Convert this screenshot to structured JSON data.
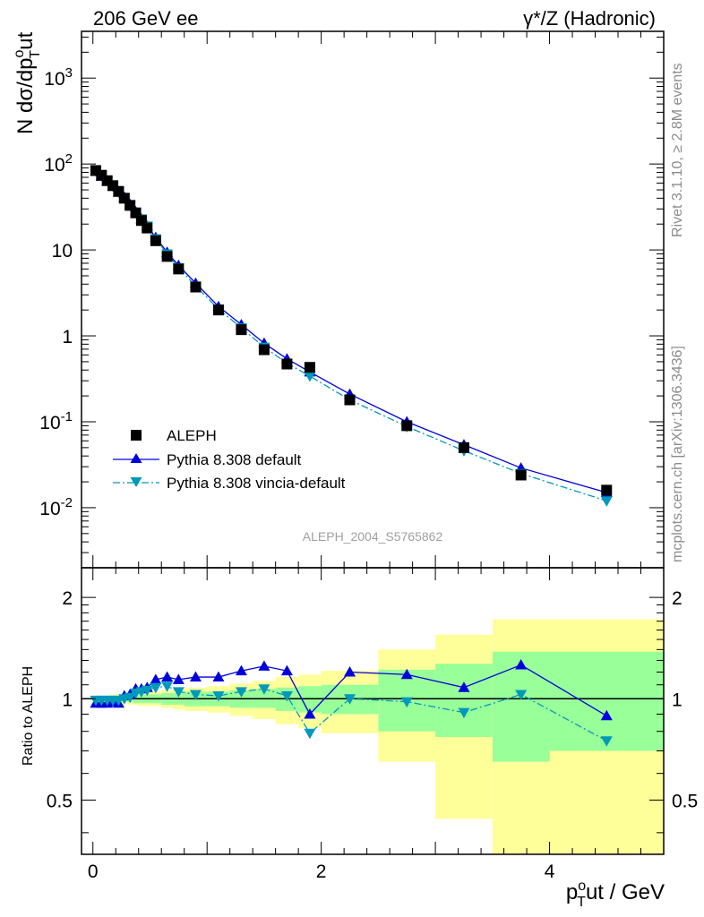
{
  "header": {
    "left": "206 GeV ee",
    "right": "γ*/Z (Hadronic)"
  },
  "side_labels": {
    "rivet": "Rivet 3.1.10, ≥ 2.8M events",
    "site": "mcplots.cern.ch [arXiv:1306.3436]"
  },
  "analysis_label": "ALEPH_2004_S5765862",
  "axes": {
    "y_main_label": "N dσ/dpTout",
    "y_ratio_label": "Ratio to ALEPH",
    "x_label": "pTout / GeV",
    "y_main_ticks": [
      "10^-2",
      "10^-1",
      "1",
      "10",
      "10^2",
      "10^3"
    ],
    "y_ratio_ticks": [
      "0.5",
      "1",
      "2"
    ],
    "x_ticks": [
      "0",
      "2",
      "4"
    ]
  },
  "legend": [
    {
      "label": "ALEPH",
      "marker": "square",
      "color": "#000000"
    },
    {
      "label": "Pythia 8.308 default",
      "marker": "triangle-up",
      "color": "#0000dd"
    },
    {
      "label": "Pythia 8.308 vincia-default",
      "marker": "triangle-down",
      "color": "#0099bb"
    }
  ],
  "chart_data": {
    "type": "line",
    "x_range": [
      -0.1,
      5.0
    ],
    "main": {
      "yscale": "log",
      "ylim": [
        0.002,
        3500
      ],
      "series": [
        {
          "name": "ALEPH",
          "color": "#000000",
          "marker": "square",
          "x": [
            0.025,
            0.075,
            0.125,
            0.175,
            0.225,
            0.275,
            0.325,
            0.375,
            0.425,
            0.475,
            0.55,
            0.65,
            0.75,
            0.9,
            1.1,
            1.3,
            1.5,
            1.7,
            1.9,
            2.25,
            2.75,
            3.25,
            3.75,
            4.5
          ],
          "y": [
            84,
            74,
            64,
            56,
            48,
            40,
            33,
            27,
            22,
            18,
            12.8,
            8.4,
            6.0,
            3.7,
            2.0,
            1.18,
            0.69,
            0.47,
            0.43,
            0.18,
            0.09,
            0.05,
            0.024,
            0.016
          ]
        },
        {
          "name": "Pythia 8.308 default",
          "color": "#0000dd",
          "marker": "triangle-up",
          "x": [
            0.025,
            0.075,
            0.125,
            0.175,
            0.225,
            0.275,
            0.325,
            0.375,
            0.425,
            0.475,
            0.55,
            0.65,
            0.75,
            0.9,
            1.1,
            1.3,
            1.5,
            1.7,
            1.9,
            2.25,
            2.75,
            3.25,
            3.75,
            4.5
          ],
          "y": [
            82,
            72,
            63,
            55,
            47,
            41,
            34,
            28,
            23,
            19,
            14,
            9.4,
            6.6,
            4.1,
            2.2,
            1.35,
            0.82,
            0.54,
            0.38,
            0.21,
            0.1,
            0.054,
            0.029,
            0.015
          ]
        },
        {
          "name": "Pythia 8.308 vincia-default",
          "color": "#0099bb",
          "marker": "triangle-down",
          "x": [
            0.025,
            0.075,
            0.125,
            0.175,
            0.225,
            0.275,
            0.325,
            0.375,
            0.425,
            0.475,
            0.55,
            0.65,
            0.75,
            0.9,
            1.1,
            1.3,
            1.5,
            1.7,
            1.9,
            2.25,
            2.75,
            3.25,
            3.75,
            4.5
          ],
          "y": [
            83,
            73,
            64,
            55,
            47,
            40,
            33,
            27,
            23,
            19,
            13.5,
            9.0,
            6.2,
            3.8,
            2.05,
            1.24,
            0.74,
            0.48,
            0.34,
            0.18,
            0.088,
            0.046,
            0.025,
            0.012
          ]
        }
      ]
    },
    "ratio": {
      "yscale": "log",
      "ylim": [
        0.345,
        2.45
      ],
      "reference_line": 1,
      "bands": {
        "x_edges": [
          0.0,
          0.05,
          0.1,
          0.15,
          0.2,
          0.25,
          0.3,
          0.35,
          0.4,
          0.45,
          0.5,
          0.6,
          0.7,
          0.8,
          1.0,
          1.2,
          1.4,
          1.6,
          1.8,
          2.0,
          2.5,
          3.0,
          3.5,
          4.0,
          5.0
        ],
        "green_low": [
          0.99,
          0.99,
          0.99,
          0.98,
          0.98,
          0.98,
          0.98,
          0.97,
          0.97,
          0.97,
          0.97,
          0.96,
          0.96,
          0.95,
          0.95,
          0.94,
          0.94,
          0.92,
          0.91,
          0.9,
          0.8,
          0.77,
          0.65,
          0.7,
          0.7
        ],
        "green_high": [
          1.01,
          1.01,
          1.01,
          1.02,
          1.02,
          1.02,
          1.02,
          1.03,
          1.03,
          1.03,
          1.03,
          1.04,
          1.04,
          1.05,
          1.05,
          1.06,
          1.07,
          1.08,
          1.09,
          1.1,
          1.22,
          1.27,
          1.38,
          1.38,
          1.38
        ],
        "yellow_low": [
          0.98,
          0.98,
          0.98,
          0.97,
          0.97,
          0.97,
          0.96,
          0.96,
          0.95,
          0.95,
          0.95,
          0.94,
          0.93,
          0.92,
          0.91,
          0.89,
          0.87,
          0.84,
          0.82,
          0.79,
          0.65,
          0.44,
          0.32,
          0.32,
          0.32
        ],
        "yellow_high": [
          1.02,
          1.02,
          1.02,
          1.03,
          1.03,
          1.03,
          1.04,
          1.04,
          1.05,
          1.05,
          1.05,
          1.06,
          1.07,
          1.08,
          1.09,
          1.11,
          1.13,
          1.16,
          1.18,
          1.21,
          1.4,
          1.55,
          1.72,
          1.72,
          1.72
        ]
      },
      "series": [
        {
          "name": "Pythia 8.308 default",
          "color": "#0000dd",
          "marker": "triangle-up",
          "x": [
            0.025,
            0.075,
            0.125,
            0.175,
            0.225,
            0.275,
            0.325,
            0.375,
            0.425,
            0.475,
            0.55,
            0.65,
            0.75,
            0.9,
            1.1,
            1.3,
            1.5,
            1.7,
            1.9,
            2.25,
            2.75,
            3.25,
            3.75,
            4.5
          ],
          "y": [
            0.97,
            0.97,
            0.97,
            0.98,
            0.97,
            1.02,
            1.03,
            1.07,
            1.07,
            1.08,
            1.14,
            1.16,
            1.14,
            1.16,
            1.16,
            1.21,
            1.25,
            1.21,
            0.9,
            1.2,
            1.18,
            1.08,
            1.26,
            0.89
          ]
        },
        {
          "name": "Pythia 8.308 vincia-default",
          "color": "#0099bb",
          "marker": "triangle-down",
          "x": [
            0.025,
            0.075,
            0.125,
            0.175,
            0.225,
            0.275,
            0.325,
            0.375,
            0.425,
            0.475,
            0.55,
            0.65,
            0.75,
            0.9,
            1.1,
            1.3,
            1.5,
            1.7,
            1.9,
            2.25,
            2.75,
            3.25,
            3.75,
            4.5
          ],
          "y": [
            0.99,
            0.99,
            0.99,
            0.99,
            0.99,
            1.0,
            1.01,
            1.04,
            1.05,
            1.06,
            1.08,
            1.09,
            1.05,
            1.03,
            1.02,
            1.05,
            1.07,
            1.02,
            0.79,
            1.0,
            0.98,
            0.91,
            1.03,
            0.75
          ]
        }
      ]
    }
  }
}
